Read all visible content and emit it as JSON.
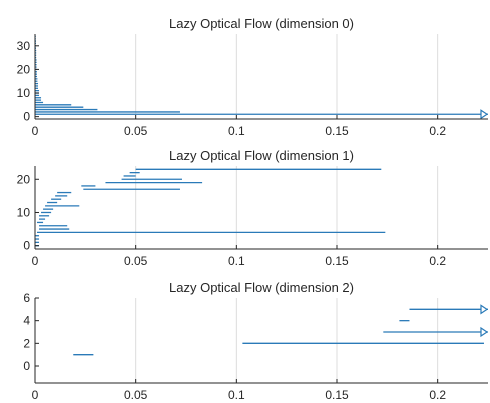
{
  "chart_data": [
    {
      "type": "horizontal-segment",
      "title": "Lazy Optical Flow (dimension 0)",
      "xlim": [
        0,
        0.225
      ],
      "ylim": [
        -1,
        35
      ],
      "xticks": [
        0,
        0.05,
        0.1,
        0.15,
        0.2
      ],
      "xtick_labels": [
        "0",
        "0.05",
        "0.1",
        "0.15",
        "0.2"
      ],
      "yticks": [
        0,
        10,
        20,
        30
      ],
      "ytick_labels": [
        "0",
        "10",
        "20",
        "30"
      ],
      "grid": true,
      "segments": [
        {
          "y": 1,
          "x0": 0,
          "x1": 0.225,
          "truncated": true
        },
        {
          "y": 2,
          "x0": 0,
          "x1": 0.072
        },
        {
          "y": 3,
          "x0": 0,
          "x1": 0.031
        },
        {
          "y": 4,
          "x0": 0,
          "x1": 0.024
        },
        {
          "y": 5,
          "x0": 0,
          "x1": 0.018
        },
        {
          "y": 6,
          "x0": 0,
          "x1": 0.004
        },
        {
          "y": 7,
          "x0": 0,
          "x1": 0.003
        },
        {
          "y": 8,
          "x0": 0,
          "x1": 0.003
        },
        {
          "y": 9,
          "x0": 0,
          "x1": 0.002
        },
        {
          "y": 10,
          "x0": 0,
          "x1": 0.002
        },
        {
          "y": 11,
          "x0": 0,
          "x1": 0.002
        },
        {
          "y": 12,
          "x0": 0,
          "x1": 0.0015
        },
        {
          "y": 13,
          "x0": 0,
          "x1": 0.0015
        },
        {
          "y": 14,
          "x0": 0,
          "x1": 0.0015
        },
        {
          "y": 15,
          "x0": 0,
          "x1": 0.0012
        },
        {
          "y": 16,
          "x0": 0,
          "x1": 0.0012
        },
        {
          "y": 17,
          "x0": 0,
          "x1": 0.001
        },
        {
          "y": 18,
          "x0": 0,
          "x1": 0.001
        },
        {
          "y": 19,
          "x0": 0,
          "x1": 0.001
        },
        {
          "y": 20,
          "x0": 0,
          "x1": 0.001
        },
        {
          "y": 21,
          "x0": 0,
          "x1": 0.0008
        },
        {
          "y": 22,
          "x0": 0,
          "x1": 0.0008
        },
        {
          "y": 23,
          "x0": 0,
          "x1": 0.0008
        },
        {
          "y": 24,
          "x0": 0,
          "x1": 0.0008
        },
        {
          "y": 25,
          "x0": 0,
          "x1": 0.0006
        },
        {
          "y": 26,
          "x0": 0,
          "x1": 0.0006
        },
        {
          "y": 27,
          "x0": 0,
          "x1": 0.0006
        },
        {
          "y": 28,
          "x0": 0,
          "x1": 0.0006
        },
        {
          "y": 29,
          "x0": 0,
          "x1": 0.0005
        },
        {
          "y": 30,
          "x0": 0,
          "x1": 0.0005
        },
        {
          "y": 31,
          "x0": 0,
          "x1": 0.0005
        },
        {
          "y": 32,
          "x0": 0,
          "x1": 0.0005
        },
        {
          "y": 33,
          "x0": 0,
          "x1": 0.0004
        },
        {
          "y": 34,
          "x0": 0,
          "x1": 0.0004
        }
      ]
    },
    {
      "type": "horizontal-segment",
      "title": "Lazy Optical Flow (dimension 1)",
      "xlim": [
        0,
        0.225
      ],
      "ylim": [
        -1,
        24
      ],
      "xticks": [
        0,
        0.05,
        0.1,
        0.15,
        0.2
      ],
      "xtick_labels": [
        "0",
        "0.05",
        "0.1",
        "0.15",
        "0.2"
      ],
      "yticks": [
        0,
        10,
        20
      ],
      "ytick_labels": [
        "0",
        "10",
        "20"
      ],
      "grid": true,
      "segments": [
        {
          "y": 0,
          "x0": 0,
          "x1": 0.002
        },
        {
          "y": 1,
          "x0": 0,
          "x1": 0.002
        },
        {
          "y": 2,
          "x0": 0,
          "x1": 0.002
        },
        {
          "y": 3,
          "x0": 0,
          "x1": 0.002
        },
        {
          "y": 4,
          "x0": 0.001,
          "x1": 0.174
        },
        {
          "y": 5,
          "x0": 0.002,
          "x1": 0.017
        },
        {
          "y": 6,
          "x0": 0.002,
          "x1": 0.016
        },
        {
          "y": 7,
          "x0": 0.001,
          "x1": 0.004
        },
        {
          "y": 8,
          "x0": 0.002,
          "x1": 0.005
        },
        {
          "y": 9,
          "x0": 0.002,
          "x1": 0.007
        },
        {
          "y": 10,
          "x0": 0.003,
          "x1": 0.008
        },
        {
          "y": 11,
          "x0": 0.004,
          "x1": 0.009
        },
        {
          "y": 12,
          "x0": 0.005,
          "x1": 0.022
        },
        {
          "y": 13,
          "x0": 0.006,
          "x1": 0.011
        },
        {
          "y": 14,
          "x0": 0.008,
          "x1": 0.013
        },
        {
          "y": 15,
          "x0": 0.01,
          "x1": 0.016
        },
        {
          "y": 16,
          "x0": 0.011,
          "x1": 0.018
        },
        {
          "y": 17,
          "x0": 0.024,
          "x1": 0.072
        },
        {
          "y": 18,
          "x0": 0.023,
          "x1": 0.03
        },
        {
          "y": 19,
          "x0": 0.035,
          "x1": 0.083
        },
        {
          "y": 20,
          "x0": 0.043,
          "x1": 0.073
        },
        {
          "y": 21,
          "x0": 0.044,
          "x1": 0.05
        },
        {
          "y": 22,
          "x0": 0.047,
          "x1": 0.052
        },
        {
          "y": 23,
          "x0": 0.05,
          "x1": 0.172
        }
      ]
    },
    {
      "type": "horizontal-segment",
      "title": "Lazy Optical Flow (dimension 2)",
      "xlim": [
        0,
        0.225
      ],
      "ylim": [
        -1.5,
        6
      ],
      "xticks": [
        0,
        0.05,
        0.1,
        0.15,
        0.2
      ],
      "xtick_labels": [
        "0",
        "0.05",
        "0.1",
        "0.15",
        "0.2"
      ],
      "yticks": [
        0,
        2,
        4,
        6
      ],
      "ytick_labels": [
        "0",
        "2",
        "4",
        "6"
      ],
      "grid": true,
      "segments": [
        {
          "y": 1,
          "x0": 0.019,
          "x1": 0.029
        },
        {
          "y": 2,
          "x0": 0.103,
          "x1": 0.223
        },
        {
          "y": 3,
          "x0": 0.173,
          "x1": 0.225,
          "truncated": true
        },
        {
          "y": 4,
          "x0": 0.181,
          "x1": 0.186
        },
        {
          "y": 5,
          "x0": 0.186,
          "x1": 0.225,
          "truncated": true
        }
      ]
    }
  ]
}
